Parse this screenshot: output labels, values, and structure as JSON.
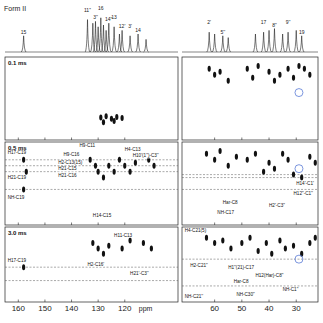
{
  "chart_data": [
    {
      "type": "spectrum",
      "title": "Form II",
      "xlim": [
        [
          165,
          100
        ],
        [
          72,
          22
        ]
      ],
      "x": [
        158,
        134,
        132,
        131,
        130,
        129,
        128,
        127,
        126,
        124,
        122,
        121,
        118,
        115,
        112,
        62,
        60,
        57,
        55,
        45,
        42,
        40,
        38,
        35,
        33,
        30,
        28
      ],
      "values": [
        0.45,
        0.9,
        0.8,
        0.85,
        0.7,
        0.95,
        0.75,
        0.6,
        0.8,
        0.7,
        0.5,
        0.6,
        0.45,
        0.5,
        0.35,
        0.55,
        0.5,
        0.45,
        0.4,
        0.5,
        0.55,
        0.6,
        0.65,
        0.5,
        0.55,
        0.6,
        0.45
      ],
      "labels": [
        "15",
        "11''",
        null,
        "3''",
        null,
        "16",
        null,
        null,
        "14''",
        "13",
        null,
        "12'",
        "3'",
        "14",
        null,
        "2'",
        null,
        "5''",
        null,
        null,
        "17",
        null,
        "8''",
        null,
        "9''",
        null,
        "19"
      ]
    },
    {
      "type": "scatter",
      "title": "0.1 ms",
      "xlim": [
        165,
        100
      ],
      "ylim": [
        0,
        14
      ],
      "xticks": [
        160,
        150,
        140,
        130,
        120
      ],
      "tick_labels": false,
      "x": [
        129,
        127,
        125,
        123,
        121,
        128,
        124
      ],
      "y": [
        10.2,
        10.0,
        10.4,
        10.1,
        10.3,
        11,
        10.8
      ],
      "hlines": [],
      "annotations": []
    },
    {
      "type": "scatter",
      "xlim": [
        72,
        22
      ],
      "ylim": [
        0,
        14
      ],
      "xticks": [
        60,
        50,
        40,
        30
      ],
      "tick_labels": false,
      "x": [
        62,
        60,
        58,
        55,
        48,
        46,
        44,
        40,
        38,
        36,
        33,
        31,
        29,
        27,
        25
      ],
      "y": [
        2,
        3,
        2.5,
        4,
        2,
        3.5,
        1.5,
        2.5,
        4,
        3,
        2,
        3.5,
        1.5,
        2,
        3
      ],
      "hlines": [],
      "annotations": [],
      "highlight": {
        "x": 29,
        "y": 6
      }
    },
    {
      "type": "scatter",
      "title": "0.5 ms",
      "xlim": [
        165,
        100
      ],
      "ylim": [
        0,
        14
      ],
      "xticks": [
        160,
        150,
        140,
        130,
        120
      ],
      "tick_labels": false,
      "x": [
        158,
        157,
        158,
        133,
        131,
        130,
        128,
        126,
        124,
        122,
        120,
        118,
        116,
        111,
        109
      ],
      "y": [
        3,
        5,
        8,
        3,
        4,
        5,
        6,
        4,
        5,
        3,
        4,
        5,
        3.5,
        3,
        4
      ],
      "hlines": [
        3,
        4,
        5,
        8
      ],
      "annotations": [
        {
          "text": "H17-C19",
          "x": 164,
          "y": 2.1
        },
        {
          "text": "H21-C19",
          "x": 164,
          "y": 6.3
        },
        {
          "text": "NH-C19",
          "x": 164,
          "y": 9.6
        },
        {
          "text": "H9-C11",
          "x": 137,
          "y": 0.9
        },
        {
          "text": "H4-C13",
          "x": 120,
          "y": 1.6
        },
        {
          "text": "H9-C16",
          "x": 143,
          "y": 2.4
        },
        {
          "text": "H2-C13(15)",
          "x": 145,
          "y": 3.7
        },
        {
          "text": "H21-C15",
          "x": 145,
          "y": 4.8
        },
        {
          "text": "H21-C16",
          "x": 145,
          "y": 5.9
        },
        {
          "text": "H10'(1'')-C3''",
          "x": 117,
          "y": 2.6
        },
        {
          "text": "H14-C15",
          "x": 132,
          "y": 12.6
        }
      ]
    },
    {
      "type": "scatter",
      "xlim": [
        72,
        22
      ],
      "ylim": [
        0,
        14
      ],
      "xticks": [
        60,
        50,
        40,
        30
      ],
      "tick_labels": false,
      "x": [
        63,
        60,
        58,
        55,
        52,
        48,
        45,
        42,
        40,
        38,
        35,
        33,
        31,
        28,
        25,
        23
      ],
      "y": [
        2,
        3,
        1.5,
        4,
        2.5,
        3,
        2,
        5,
        3.5,
        4.5,
        2,
        3,
        5.5,
        6,
        2.5,
        3.5
      ],
      "hlines": [
        5.5,
        6,
        8
      ],
      "highlight": {
        "x": 29,
        "y": 4.5
      },
      "annotations": [
        {
          "text": "H14'-C1'",
          "x": 30,
          "y": 7.2
        },
        {
          "text": "H12''-C1''",
          "x": 31,
          "y": 8.9
        },
        {
          "text": "H2'-C3''",
          "x": 40,
          "y": 11
        },
        {
          "text": "Har-C8",
          "x": 57,
          "y": 10.4
        },
        {
          "text": "NH-C17",
          "x": 59,
          "y": 12.2
        }
      ]
    },
    {
      "type": "scatter",
      "title": "3.0 ms",
      "xlim": [
        165,
        100
      ],
      "ylim": [
        0,
        14
      ],
      "xticks": [
        160,
        150,
        140,
        130,
        120
      ],
      "tick_labels": "x",
      "xlabel": "ppm",
      "x": [
        158,
        132,
        130,
        128,
        126,
        121,
        118,
        113,
        110
      ],
      "y": [
        7.5,
        3,
        4,
        5,
        3.5,
        4,
        2.5,
        3,
        4
      ],
      "hlines": [
        7.5,
        10
      ],
      "annotations": [
        {
          "text": "H17-C19",
          "x": 164,
          "y": 6.5
        },
        {
          "text": "H11-C13",
          "x": 124,
          "y": 1.8
        },
        {
          "text": "H2-C16'",
          "x": 134,
          "y": 7.2
        },
        {
          "text": "H21'-C3''",
          "x": 118,
          "y": 9
        }
      ]
    },
    {
      "type": "scatter",
      "xlim": [
        72,
        22
      ],
      "ylim": [
        0,
        14
      ],
      "xticks": [
        60,
        50,
        40,
        30
      ],
      "tick_labels": "x",
      "x": [
        63,
        60,
        57,
        54,
        50,
        47,
        44,
        41,
        39,
        36,
        34,
        31,
        28,
        25,
        23
      ],
      "y": [
        2,
        3,
        2.5,
        4,
        3,
        2,
        4.5,
        3,
        5,
        2.5,
        4,
        3.5,
        5,
        3,
        2
      ],
      "hlines": [
        6,
        11
      ],
      "highlight": {
        "x": 29,
        "y": 6
      },
      "annotations": [
        {
          "text": "H4-C21(5)",
          "x": 71,
          "y": 0.9
        },
        {
          "text": "H2-C21''",
          "x": 69,
          "y": 7.4
        },
        {
          "text": "H1''(21)-C17",
          "x": 55,
          "y": 7.8
        },
        {
          "text": "H12(Har)-C8''",
          "x": 45,
          "y": 9.3
        },
        {
          "text": "Har-C8",
          "x": 53,
          "y": 10.5
        },
        {
          "text": "NH-C1''",
          "x": 35,
          "y": 12
        },
        {
          "text": "NH-C21''",
          "x": 71,
          "y": 13.2
        },
        {
          "text": "NH-C30''",
          "x": 52,
          "y": 12.8
        }
      ]
    }
  ]
}
